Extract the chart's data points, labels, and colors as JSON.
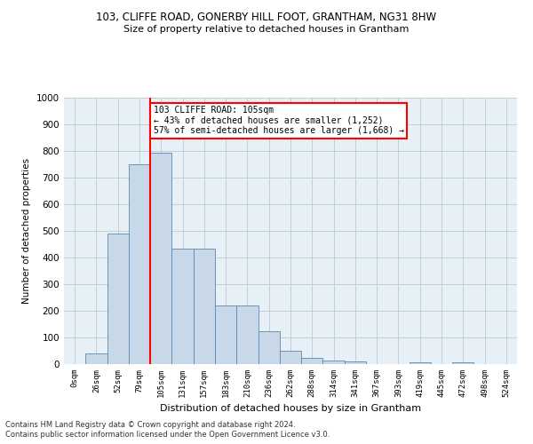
{
  "title1": "103, CLIFFE ROAD, GONERBY HILL FOOT, GRANTHAM, NG31 8HW",
  "title2": "Size of property relative to detached houses in Grantham",
  "xlabel": "Distribution of detached houses by size in Grantham",
  "ylabel": "Number of detached properties",
  "categories": [
    "0sqm",
    "26sqm",
    "52sqm",
    "79sqm",
    "105sqm",
    "131sqm",
    "157sqm",
    "183sqm",
    "210sqm",
    "236sqm",
    "262sqm",
    "288sqm",
    "314sqm",
    "341sqm",
    "367sqm",
    "393sqm",
    "419sqm",
    "445sqm",
    "472sqm",
    "498sqm",
    "524sqm"
  ],
  "values": [
    0,
    40,
    490,
    750,
    795,
    435,
    435,
    220,
    220,
    125,
    50,
    25,
    15,
    10,
    0,
    0,
    8,
    0,
    8,
    0,
    0
  ],
  "bar_color": "#c8d8e8",
  "bar_edge_color": "#5a8ab0",
  "red_line_index": 4,
  "annotation_line1": "103 CLIFFE ROAD: 105sqm",
  "annotation_line2": "← 43% of detached houses are smaller (1,252)",
  "annotation_line3": "57% of semi-detached houses are larger (1,668) →",
  "annotation_box_color": "white",
  "annotation_box_edge": "red",
  "ylim": [
    0,
    1000
  ],
  "yticks": [
    0,
    100,
    200,
    300,
    400,
    500,
    600,
    700,
    800,
    900,
    1000
  ],
  "footer1": "Contains HM Land Registry data © Crown copyright and database right 2024.",
  "footer2": "Contains public sector information licensed under the Open Government Licence v3.0.",
  "grid_color": "#c0ced8",
  "bg_color": "#e8f0f7"
}
